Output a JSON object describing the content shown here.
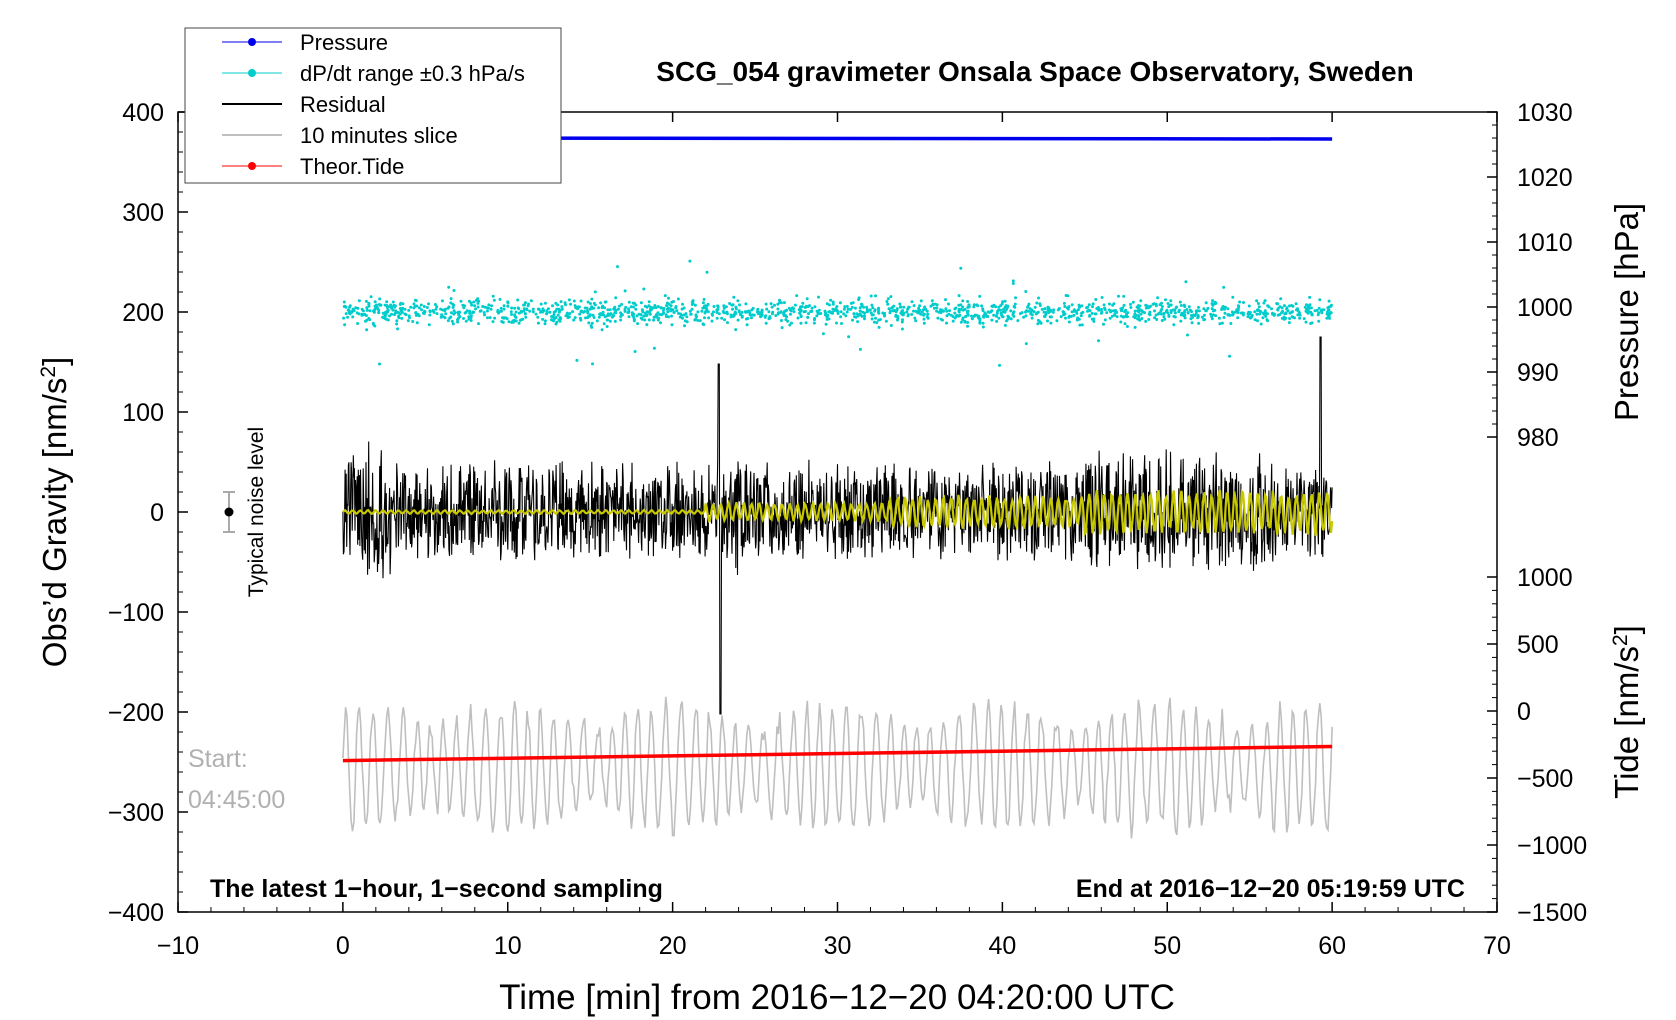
{
  "chart_data": {
    "type": "line",
    "title": "SCG_054 gravimeter Onsala Space Observatory, Sweden",
    "xlabel": "Time [min] from 2016−12−20 04:20:00 UTC",
    "ylabel_left_pre": "Obs’d Gravity [nm/s",
    "ylabel_left_sup": "2",
    "ylabel_left_post": "]",
    "ylabel_pressure": "Pressure [hPa]",
    "ylabel_tide_pre": "Tide [nm/s",
    "ylabel_tide_sup": "2",
    "ylabel_tide_post": "]",
    "xlim": [
      -10,
      70
    ],
    "ylim": [
      -400,
      400
    ],
    "x_ticks": [
      "−10",
      "0",
      "10",
      "20",
      "30",
      "40",
      "50",
      "60",
      "70"
    ],
    "y_ticks": [
      "−400",
      "−300",
      "−200",
      "−100",
      "0",
      "100",
      "200",
      "300",
      "400"
    ],
    "pressure_axis": {
      "range": [
        980,
        1030
      ],
      "ticks": [
        "980",
        "990",
        "1000",
        "1010",
        "1020",
        "1030"
      ]
    },
    "tide_axis": {
      "range": [
        -1500,
        1000
      ],
      "ticks": [
        "−1500",
        "−1000",
        "−500",
        "0",
        "500",
        "1000"
      ]
    },
    "legend": [
      {
        "label": "Pressure",
        "color": "#0000ee",
        "marker": true
      },
      {
        "label": "dP/dt range ±0.3 hPa/s",
        "color": "#00cccc",
        "marker": true
      },
      {
        "label": "Residual",
        "color": "#000000",
        "marker": false
      },
      {
        "label": "10 minutes slice",
        "color": "#bfbfbf",
        "marker": false
      },
      {
        "label": "Theor.Tide",
        "color": "#ff0000",
        "marker": true
      }
    ],
    "legend_position": "top-left",
    "series": [
      {
        "name": "Pressure",
        "axis": "pressure",
        "x_range": [
          0,
          60
        ],
        "start": 1026.2,
        "end": 1026.2
      },
      {
        "name": "dP/dt range ±0.3 hPa/s",
        "axis": "gravity",
        "x_range": [
          0,
          60
        ],
        "center": 200,
        "spread": 15
      },
      {
        "name": "Residual",
        "axis": "gravity",
        "x_range": [
          0,
          60
        ],
        "center": 0,
        "amplitude": 60,
        "peak_max": 148,
        "peak_min": -202
      },
      {
        "name": "Residual (smoothed)",
        "axis": "gravity",
        "color": "#c8c800",
        "x_range": [
          0,
          60
        ],
        "center": 0
      },
      {
        "name": "10 minutes slice",
        "axis": "gravity",
        "x_range": [
          0,
          60
        ],
        "center": -255,
        "amplitude": 55
      },
      {
        "name": "Theor.Tide",
        "axis": "tide",
        "x_range": [
          0,
          60
        ],
        "start": -370,
        "end": -265
      }
    ],
    "noise_marker": {
      "label": "Typical noise level",
      "x": -7,
      "y": 0,
      "error": 20
    },
    "annotations": {
      "start_label": "Start:",
      "start_time": "04:45:00",
      "bottom_left": "The latest 1−hour, 1−second sampling",
      "bottom_right": "End at 2016−12−20 05:19:59 UTC"
    }
  }
}
